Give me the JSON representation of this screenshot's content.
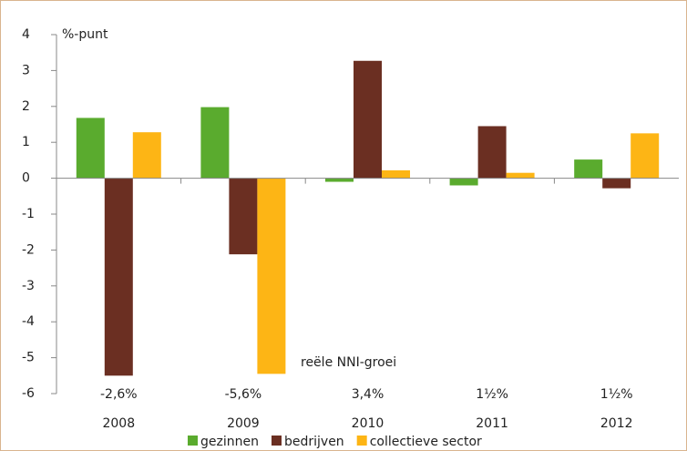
{
  "chart_data": {
    "type": "bar",
    "y_label": "%-punt",
    "annotation_title": "reële NNI-groei",
    "annotations": [
      "-2,6%",
      "-5,6%",
      "3,4%",
      "1½%",
      "1½%"
    ],
    "categories": [
      "2008",
      "2009",
      "2010",
      "2011",
      "2012"
    ],
    "series": [
      {
        "name": "gezinnen",
        "color": "#5aab2e",
        "values": [
          1.68,
          1.98,
          -0.1,
          -0.2,
          0.52
        ]
      },
      {
        "name": "bedrijven",
        "color": "#6b2f22",
        "values": [
          -5.5,
          -2.12,
          3.27,
          1.45,
          -0.28
        ]
      },
      {
        "name": "collectieve sector",
        "color": "#fdb515",
        "values": [
          1.28,
          -5.45,
          0.22,
          0.15,
          1.25
        ]
      }
    ],
    "ylim": [
      -6,
      4
    ],
    "yticks": [
      -6,
      -5,
      -4,
      -3,
      -2,
      -1,
      0,
      1,
      2,
      3,
      4
    ]
  }
}
